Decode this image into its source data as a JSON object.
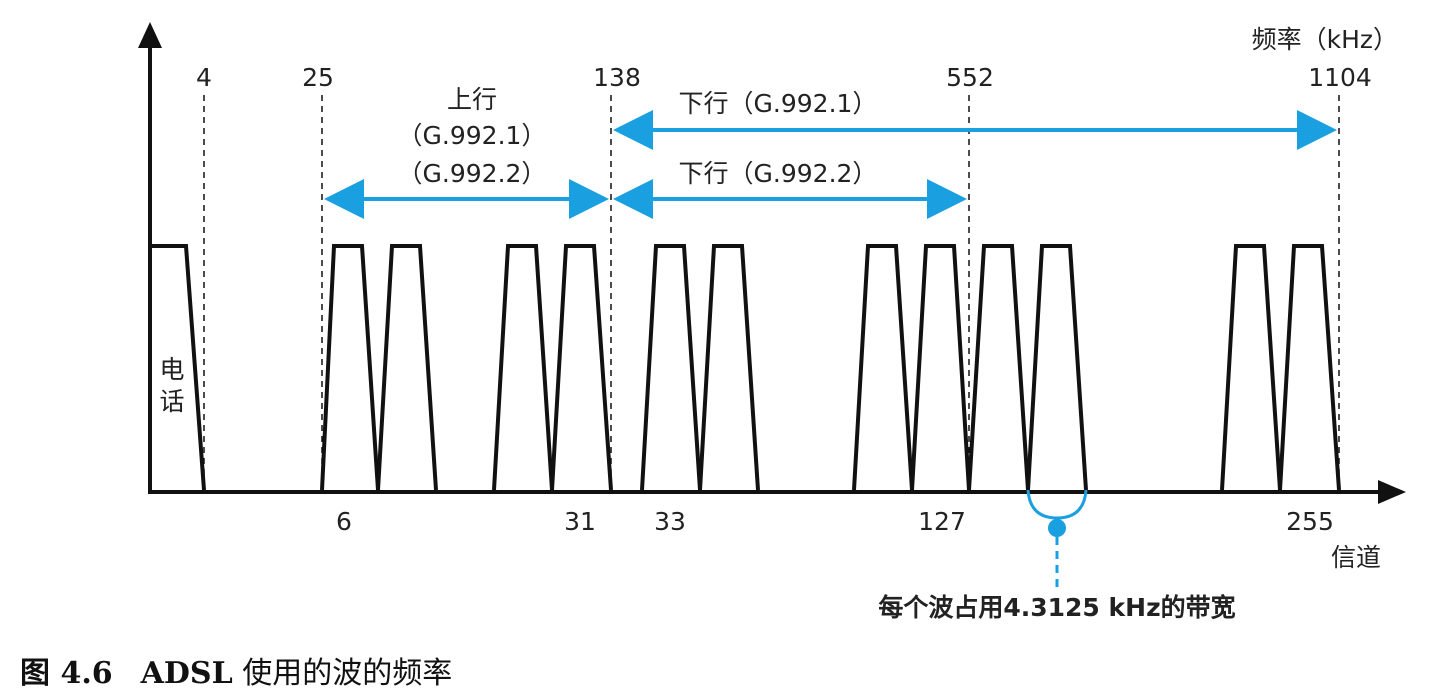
{
  "diagram": {
    "freq_axis_label": "频率（kHz）",
    "channel_axis_label": "信道",
    "phone_label": [
      "电",
      "话"
    ],
    "freq_ticks": [
      "4",
      "25",
      "138",
      "552",
      "1104"
    ],
    "channel_ticks": [
      "6",
      "31",
      "33",
      "127",
      "255"
    ],
    "upstream_label": [
      "上行",
      "（G.992.1）",
      "（G.992.2）"
    ],
    "downstream_g9921_label": "下行（G.992.1）",
    "downstream_g9922_label": "下行（G.992.2）",
    "bandwidth_note": "每个波占用4.3125 kHz的带宽",
    "arrow_color": "#1a9fe0",
    "line_color": "#111111"
  },
  "caption": {
    "number": "图 4.6",
    "acronym": "ADSL",
    "title": "使用的波的频率"
  }
}
